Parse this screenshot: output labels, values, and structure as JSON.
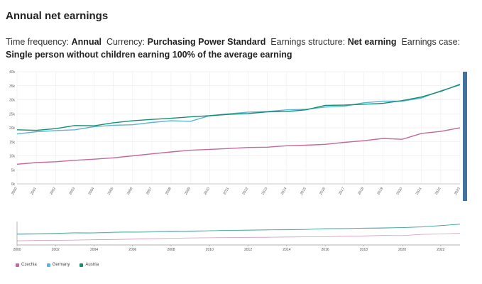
{
  "header": {
    "title": "Annual net earnings",
    "filters": [
      {
        "label": "Time frequency:",
        "value": "Annual"
      },
      {
        "label": "Currency:",
        "value": "Purchasing Power Standard"
      },
      {
        "label": "Earnings structure:",
        "value": "Net earning"
      },
      {
        "label": "Earnings case:",
        "value": "Single person without children earning 100% of the average earning"
      }
    ]
  },
  "chart_data": {
    "type": "line",
    "title": "",
    "xlabel": "",
    "ylabel": "",
    "x": [
      2000,
      2001,
      2002,
      2003,
      2004,
      2005,
      2006,
      2007,
      2008,
      2009,
      2010,
      2011,
      2012,
      2013,
      2014,
      2015,
      2016,
      2017,
      2018,
      2019,
      2020,
      2021,
      2022,
      2023
    ],
    "ylim": [
      0,
      40000
    ],
    "y_ticks": [
      "0k",
      "5k",
      "10k",
      "15k",
      "20k",
      "25k",
      "30k",
      "35k",
      "40k"
    ],
    "grid": true,
    "legend_position": "bottom-left",
    "series": [
      {
        "name": "Czechia",
        "color": "#c3699b",
        "values": [
          7000,
          7600,
          7900,
          8400,
          8800,
          9300,
          10000,
          10700,
          11400,
          12000,
          12300,
          12600,
          13000,
          13100,
          13600,
          13800,
          14100,
          14800,
          15400,
          16200,
          15900,
          18000,
          18700,
          20000
        ]
      },
      {
        "name": "Germany",
        "color": "#5fb3d3",
        "values": [
          17800,
          18600,
          19000,
          19300,
          20400,
          20900,
          21100,
          21900,
          22500,
          22300,
          24300,
          25000,
          25600,
          25800,
          26400,
          26600,
          27400,
          27700,
          28900,
          29500,
          29500,
          30600,
          33200,
          35300
        ]
      },
      {
        "name": "Austria",
        "color": "#14906e",
        "values": [
          19300,
          19100,
          19700,
          20800,
          20700,
          21800,
          22500,
          23000,
          23400,
          23900,
          24300,
          24800,
          25100,
          25700,
          25800,
          26400,
          28000,
          28100,
          28400,
          28700,
          29700,
          31000,
          33000,
          35500
        ]
      }
    ],
    "navigator": {
      "x_ticks": [
        "2000",
        "2002",
        "2004",
        "2006",
        "2008",
        "2010",
        "2012",
        "2014",
        "2016",
        "2018",
        "2020",
        "2022"
      ]
    }
  }
}
